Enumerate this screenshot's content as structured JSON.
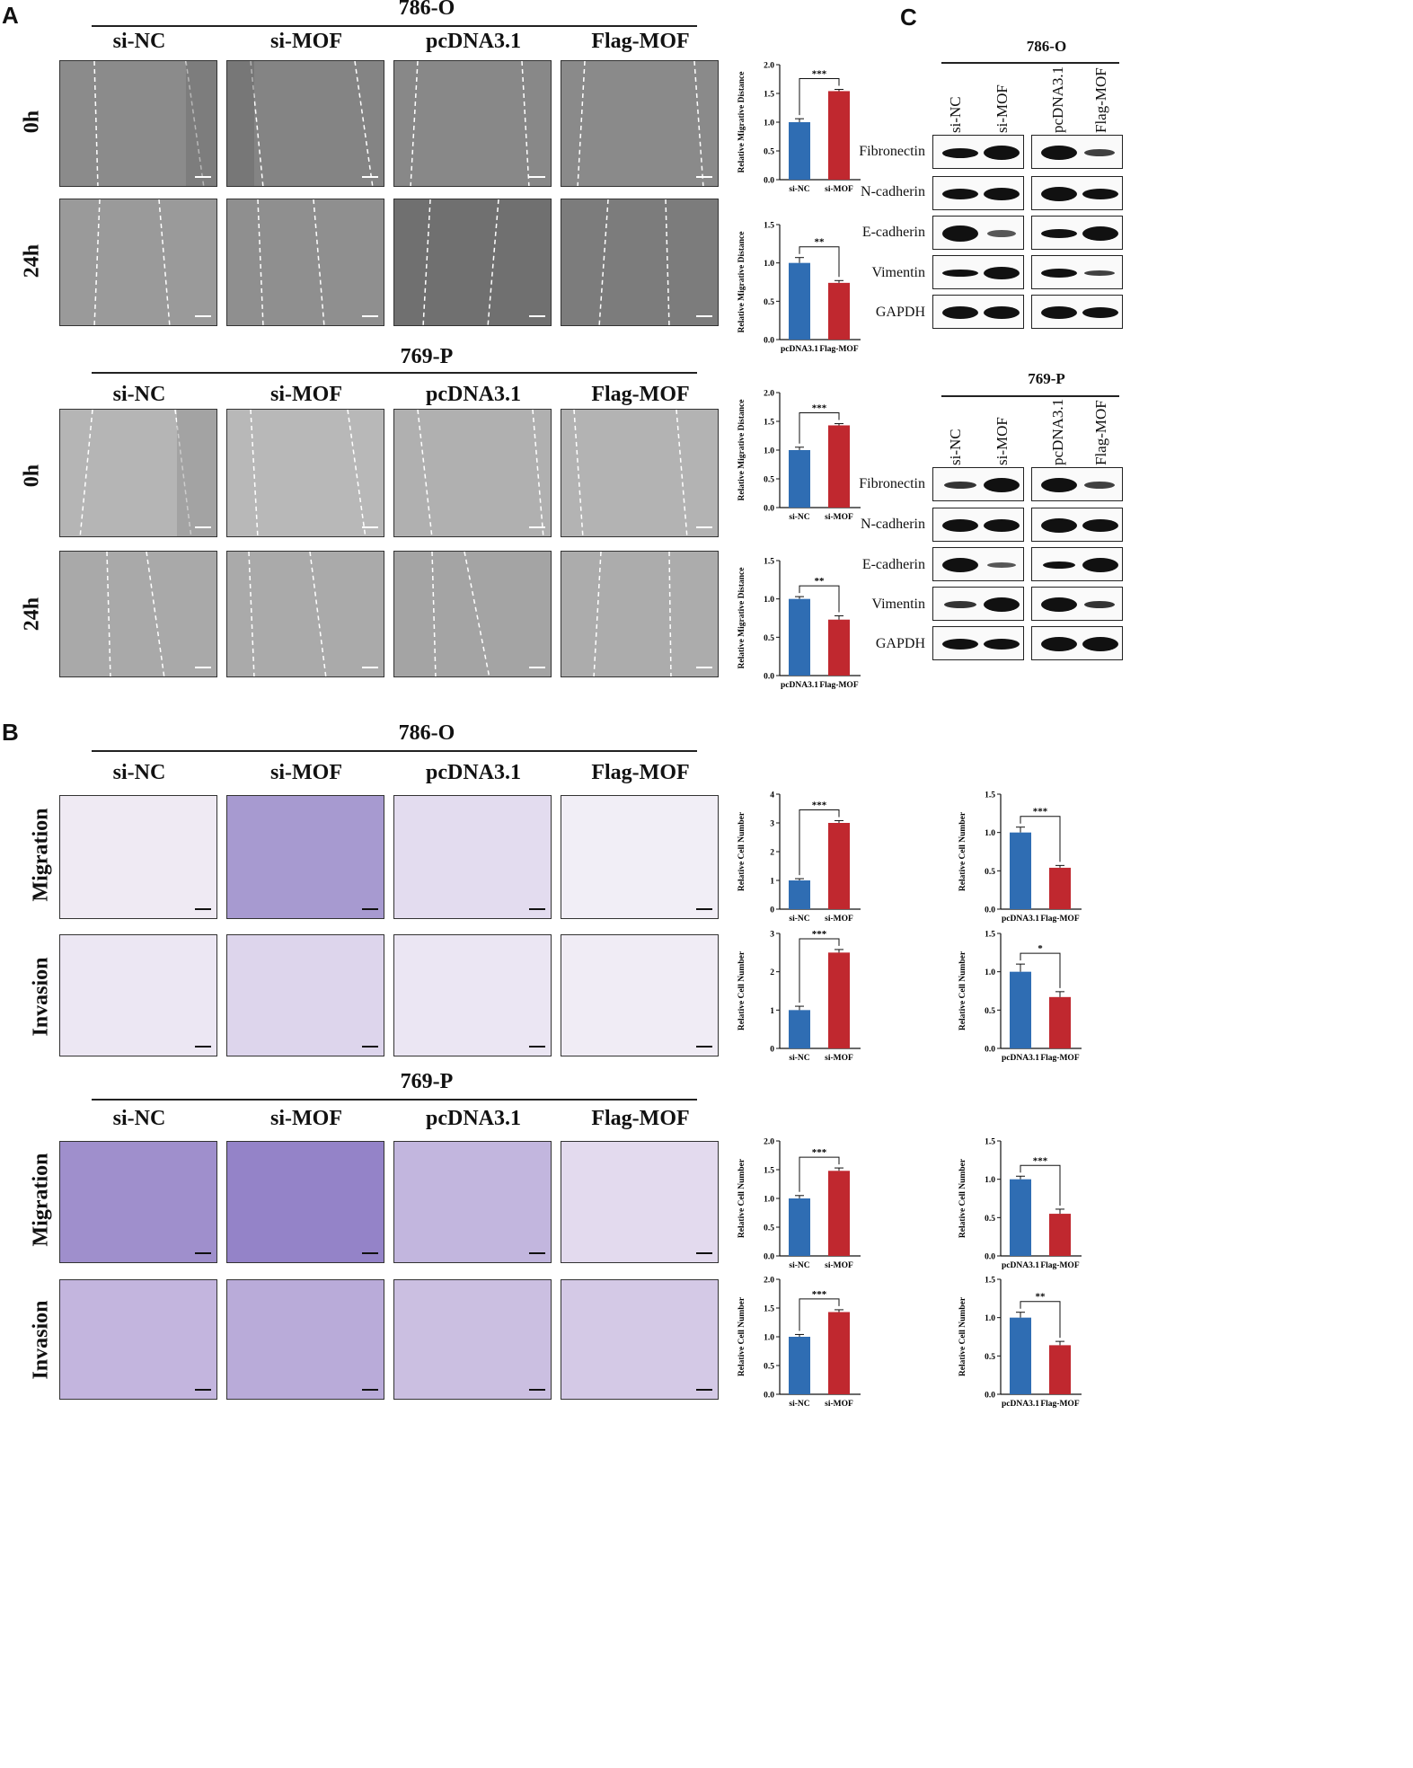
{
  "panel_labels": {
    "A": "A",
    "B": "B",
    "C": "C"
  },
  "conditions": [
    "si-NC",
    "si-MOF",
    "pcDNA3.1",
    "Flag-MOF"
  ],
  "cell_lines": {
    "l1": "786-O",
    "l2": "769-P"
  },
  "timepoints": {
    "t0": "0h",
    "t24": "24h"
  },
  "assays": {
    "migration": "Migration",
    "invasion": "Invasion"
  },
  "western": {
    "cell_lines": [
      "786-O",
      "769-P"
    ],
    "lanes": [
      "si-NC",
      "si-MOF",
      "pcDNA3.1",
      "Flag-MOF"
    ],
    "proteins": [
      "Fibronectin",
      "N-cadherin",
      "E-cadherin",
      "Vimentin",
      "GAPDH"
    ]
  },
  "chart_data": [
    {
      "id": "A1",
      "type": "bar",
      "panel": "A",
      "cell_line": "786-O",
      "categories": [
        "si-NC",
        "si-MOF"
      ],
      "values": [
        1.0,
        1.54
      ],
      "errors": [
        0.06,
        0.03
      ],
      "ylabel": "Relative Migrative Distance",
      "ylim": [
        0,
        2.0
      ],
      "yticks": [
        "0.0",
        "0.5",
        "1.0",
        "1.5",
        "2.0"
      ],
      "significance": "***",
      "colors": [
        "#2f6db3",
        "#c0282f"
      ]
    },
    {
      "id": "A2",
      "type": "bar",
      "panel": "A",
      "cell_line": "786-O",
      "categories": [
        "pcDNA3.1",
        "Flag-MOF"
      ],
      "values": [
        1.0,
        0.74
      ],
      "errors": [
        0.07,
        0.03
      ],
      "ylabel": "Relative Migrative Distance",
      "ylim": [
        0,
        1.5
      ],
      "yticks": [
        "0.0",
        "0.5",
        "1.0",
        "1.5"
      ],
      "significance": "**",
      "colors": [
        "#2f6db3",
        "#c0282f"
      ]
    },
    {
      "id": "A3",
      "type": "bar",
      "panel": "A",
      "cell_line": "769-P",
      "categories": [
        "si-NC",
        "si-MOF"
      ],
      "values": [
        1.0,
        1.43
      ],
      "errors": [
        0.05,
        0.03
      ],
      "ylabel": "Relative Migrative Distance",
      "ylim": [
        0,
        2.0
      ],
      "yticks": [
        "0.0",
        "0.5",
        "1.0",
        "1.5",
        "2.0"
      ],
      "significance": "***",
      "colors": [
        "#2f6db3",
        "#c0282f"
      ]
    },
    {
      "id": "A4",
      "type": "bar",
      "panel": "A",
      "cell_line": "769-P",
      "categories": [
        "pcDNA3.1",
        "Flag-MOF"
      ],
      "values": [
        1.0,
        0.73
      ],
      "errors": [
        0.03,
        0.05
      ],
      "ylabel": "Relative Migrative Distance",
      "ylim": [
        0,
        1.5
      ],
      "yticks": [
        "0.0",
        "0.5",
        "1.0",
        "1.5"
      ],
      "significance": "**",
      "colors": [
        "#2f6db3",
        "#c0282f"
      ]
    },
    {
      "id": "B1",
      "type": "bar",
      "panel": "B",
      "cell_line": "786-O",
      "assay": "Migration",
      "categories": [
        "si-NC",
        "si-MOF"
      ],
      "values": [
        1.0,
        3.0
      ],
      "errors": [
        0.06,
        0.08
      ],
      "ylabel": "Relative Cell Number",
      "ylim": [
        0,
        4
      ],
      "yticks": [
        "0",
        "1",
        "2",
        "3",
        "4"
      ],
      "significance": "***",
      "colors": [
        "#2f6db3",
        "#c0282f"
      ]
    },
    {
      "id": "B2",
      "type": "bar",
      "panel": "B",
      "cell_line": "786-O",
      "assay": "Migration",
      "categories": [
        "pcDNA3.1",
        "Flag-MOF"
      ],
      "values": [
        1.0,
        0.54
      ],
      "errors": [
        0.07,
        0.03
      ],
      "ylabel": "Relative Cell Number",
      "ylim": [
        0,
        1.5
      ],
      "yticks": [
        "0.0",
        "0.5",
        "1.0",
        "1.5"
      ],
      "significance": "***",
      "colors": [
        "#2f6db3",
        "#c0282f"
      ]
    },
    {
      "id": "B3",
      "type": "bar",
      "panel": "B",
      "cell_line": "786-O",
      "assay": "Invasion",
      "categories": [
        "si-NC",
        "si-MOF"
      ],
      "values": [
        1.0,
        2.5
      ],
      "errors": [
        0.1,
        0.08
      ],
      "ylabel": "Relative Cell Number",
      "ylim": [
        0,
        3
      ],
      "yticks": [
        "0",
        "1",
        "2",
        "3"
      ],
      "significance": "***",
      "colors": [
        "#2f6db3",
        "#c0282f"
      ]
    },
    {
      "id": "B4",
      "type": "bar",
      "panel": "B",
      "cell_line": "786-O",
      "assay": "Invasion",
      "categories": [
        "pcDNA3.1",
        "Flag-MOF"
      ],
      "values": [
        1.0,
        0.67
      ],
      "errors": [
        0.1,
        0.07
      ],
      "ylabel": "Relative Cell Number",
      "ylim": [
        0,
        1.5
      ],
      "yticks": [
        "0.0",
        "0.5",
        "1.0",
        "1.5"
      ],
      "significance": "*",
      "colors": [
        "#2f6db3",
        "#c0282f"
      ]
    },
    {
      "id": "B5",
      "type": "bar",
      "panel": "B",
      "cell_line": "769-P",
      "assay": "Migration",
      "categories": [
        "si-NC",
        "si-MOF"
      ],
      "values": [
        1.0,
        1.48
      ],
      "errors": [
        0.05,
        0.05
      ],
      "ylabel": "Relative Cell Number",
      "ylim": [
        0,
        2.0
      ],
      "yticks": [
        "0.0",
        "0.5",
        "1.0",
        "1.5",
        "2.0"
      ],
      "significance": "***",
      "colors": [
        "#2f6db3",
        "#c0282f"
      ]
    },
    {
      "id": "B6",
      "type": "bar",
      "panel": "B",
      "cell_line": "769-P",
      "assay": "Migration",
      "categories": [
        "pcDNA3.1",
        "Flag-MOF"
      ],
      "values": [
        1.0,
        0.55
      ],
      "errors": [
        0.04,
        0.06
      ],
      "ylabel": "Relative Cell Number",
      "ylim": [
        0,
        1.5
      ],
      "yticks": [
        "0.0",
        "0.5",
        "1.0",
        "1.5"
      ],
      "significance": "***",
      "colors": [
        "#2f6db3",
        "#c0282f"
      ]
    },
    {
      "id": "B7",
      "type": "bar",
      "panel": "B",
      "cell_line": "769-P",
      "assay": "Invasion",
      "categories": [
        "si-NC",
        "si-MOF"
      ],
      "values": [
        1.0,
        1.43
      ],
      "errors": [
        0.04,
        0.04
      ],
      "ylabel": "Relative Cell Number",
      "ylim": [
        0,
        2.0
      ],
      "yticks": [
        "0.0",
        "0.5",
        "1.0",
        "1.5",
        "2.0"
      ],
      "significance": "***",
      "colors": [
        "#2f6db3",
        "#c0282f"
      ]
    },
    {
      "id": "B8",
      "type": "bar",
      "panel": "B",
      "cell_line": "769-P",
      "assay": "Invasion",
      "categories": [
        "pcDNA3.1",
        "Flag-MOF"
      ],
      "values": [
        1.0,
        0.64
      ],
      "errors": [
        0.07,
        0.05
      ],
      "ylabel": "Relative Cell Number",
      "ylim": [
        0,
        1.5
      ],
      "yticks": [
        "0.0",
        "0.5",
        "1.0",
        "1.5"
      ],
      "significance": "**",
      "colors": [
        "#2f6db3",
        "#c0282f"
      ]
    }
  ]
}
